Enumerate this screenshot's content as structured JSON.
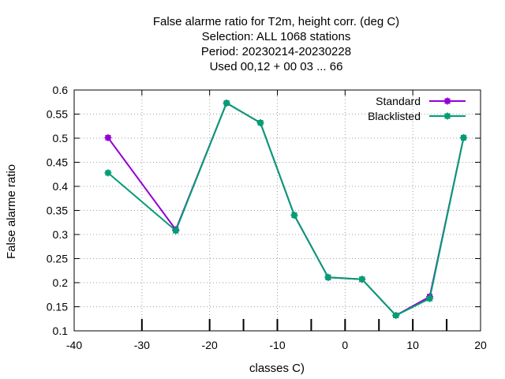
{
  "chart_data": {
    "type": "line",
    "title_lines": [
      "False alarme ratio  for T2m, height corr. (deg C)",
      "Selection: ALL   1068 stations",
      "Period: 20230214-20230228",
      "Used  00,12  + 00 03 ... 66"
    ],
    "xlabel": "classes C)",
    "ylabel": "False alarme ratio",
    "xlim": [
      -40,
      20
    ],
    "ylim": [
      0.1,
      0.6
    ],
    "xticks": [
      -40,
      -30,
      -20,
      -10,
      0,
      10,
      20
    ],
    "yticks": [
      0.1,
      0.15,
      0.2,
      0.25,
      0.3,
      0.35,
      0.4,
      0.45,
      0.5,
      0.55,
      0.6
    ],
    "ytick_labels": [
      "0.1",
      "0.15",
      "0.2",
      "0.25",
      "0.3",
      "0.35",
      "0.4",
      "0.45",
      "0.5",
      "0.55",
      "0.6"
    ],
    "grid": true,
    "legend_position": "top-right",
    "class_markers": [
      -30,
      -20,
      -15,
      -10,
      -5,
      0,
      5,
      10,
      15
    ],
    "series": [
      {
        "name": "Standard",
        "color": "#9400d3",
        "x": [
          -35,
          -25,
          -17.5,
          -12.5,
          -7.5,
          -2.5,
          2.5,
          7.5,
          12.5,
          17.5
        ],
        "y": [
          0.501,
          0.31,
          0.573,
          0.532,
          0.34,
          0.211,
          0.207,
          0.132,
          0.171,
          0.501
        ]
      },
      {
        "name": "Blacklisted",
        "color": "#009e73",
        "x": [
          -35,
          -25,
          -17.5,
          -12.5,
          -7.5,
          -2.5,
          2.5,
          7.5,
          12.5,
          17.5
        ],
        "y": [
          0.428,
          0.308,
          0.573,
          0.532,
          0.34,
          0.211,
          0.207,
          0.132,
          0.167,
          0.501
        ]
      }
    ]
  }
}
